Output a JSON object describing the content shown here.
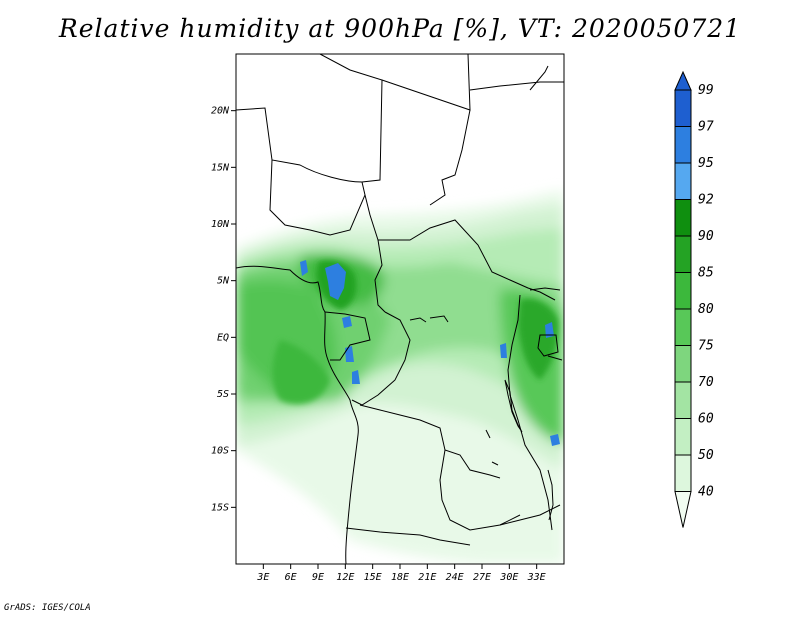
{
  "title": "Relative humidity at 900hPa [%], VT: 2020050721",
  "credit": "GrADS: IGES/COLA",
  "map": {
    "lon_range": [
      0,
      36
    ],
    "lat_range": [
      -20,
      25
    ],
    "lon_ticks": [
      "3E",
      "6E",
      "9E",
      "12E",
      "15E",
      "18E",
      "21E",
      "24E",
      "27E",
      "30E",
      "33E"
    ],
    "lat_ticks": [
      "20N",
      "15N",
      "10N",
      "5N",
      "EQ",
      "5S",
      "10S",
      "15S"
    ]
  },
  "colorbar": {
    "labels": [
      "99",
      "97",
      "95",
      "92",
      "90",
      "85",
      "80",
      "75",
      "70",
      "60",
      "50",
      "40"
    ],
    "colors": [
      "#1e5fd0",
      "#2d7fe0",
      "#55a8f0",
      "#0f8f0f",
      "#24a324",
      "#3cb83c",
      "#58c858",
      "#7ed67e",
      "#a3e4a3",
      "#c3efc3",
      "#ddf7dd",
      "#f1fcf1"
    ]
  }
}
